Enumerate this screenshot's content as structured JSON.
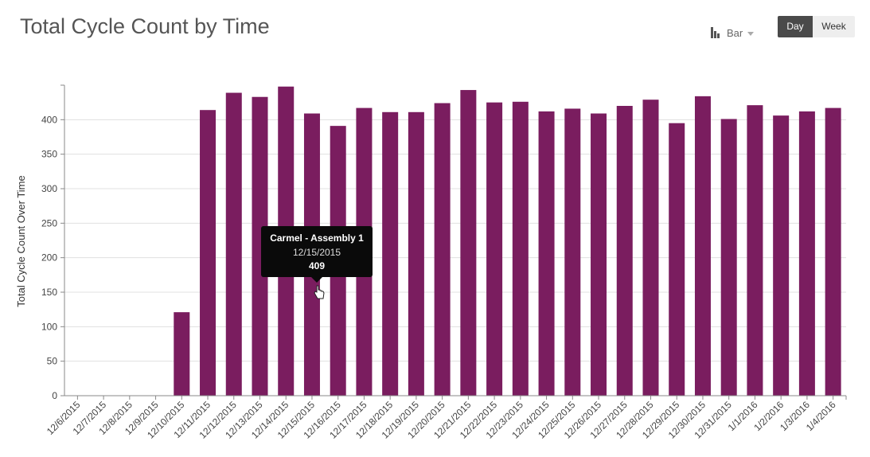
{
  "header": {
    "title": "Total Cycle Count by Time",
    "chart_type_label": "Bar",
    "toggle": {
      "day_label": "Day",
      "week_label": "Week",
      "active": "Day"
    }
  },
  "tooltip": {
    "series": "Carmel - Assembly 1",
    "date": "12/15/2015",
    "value": "409"
  },
  "colors": {
    "bar": "#7a1d5f",
    "grid": "#e0e0e0",
    "axis": "#888888"
  },
  "chart_data": {
    "type": "bar",
    "title": "Total Cycle Count by Time",
    "xlabel": "",
    "ylabel": "Total Cycle Count Over Time",
    "ylim": [
      0,
      450
    ],
    "yticks": [
      0,
      50,
      100,
      150,
      200,
      250,
      300,
      350,
      400
    ],
    "grid": true,
    "series": [
      {
        "name": "Carmel - Assembly 1"
      }
    ],
    "categories": [
      "12/6/2015",
      "12/7/2015",
      "12/8/2015",
      "12/9/2015",
      "12/10/2015",
      "12/11/2015",
      "12/12/2015",
      "12/13/2015",
      "12/14/2015",
      "12/15/2015",
      "12/16/2015",
      "12/17/2015",
      "12/18/2015",
      "12/19/2015",
      "12/20/2015",
      "12/21/2015",
      "12/22/2015",
      "12/23/2015",
      "12/24/2015",
      "12/25/2015",
      "12/26/2015",
      "12/27/2015",
      "12/28/2015",
      "12/29/2015",
      "12/30/2015",
      "12/31/2015",
      "1/1/2016",
      "1/2/2016",
      "1/3/2016",
      "1/4/2016"
    ],
    "values": [
      0,
      0,
      0,
      0,
      121,
      414,
      439,
      433,
      448,
      409,
      391,
      417,
      411,
      411,
      424,
      443,
      425,
      426,
      412,
      416,
      409,
      420,
      429,
      395,
      434,
      401,
      421,
      406,
      412,
      417
    ]
  }
}
